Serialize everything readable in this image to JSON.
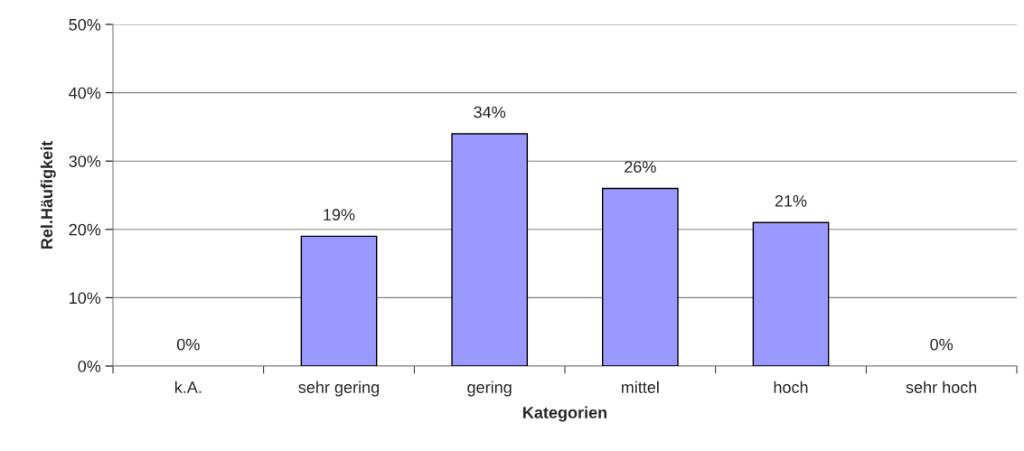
{
  "chart_data": {
    "type": "bar",
    "xlabel": "Kategorien",
    "ylabel": "Rel.Häufigkeit",
    "categories": [
      "k.A.",
      "sehr gering",
      "gering",
      "mittel",
      "hoch",
      "sehr hoch"
    ],
    "values": [
      0,
      19,
      34,
      26,
      21,
      0
    ],
    "color": "#9999ff",
    "value_labels": [
      "0%",
      "19%",
      "34%",
      "26%",
      "21%",
      "0%"
    ],
    "ylim": [
      0,
      50
    ],
    "yticks": [
      {
        "value": 0,
        "label": "0%"
      },
      {
        "value": 10,
        "label": "10%"
      },
      {
        "value": 20,
        "label": "20%"
      },
      {
        "value": 30,
        "label": "30%"
      },
      {
        "value": 40,
        "label": "40%"
      },
      {
        "value": 50,
        "label": "50%"
      }
    ],
    "grid": "y",
    "legend": false
  }
}
